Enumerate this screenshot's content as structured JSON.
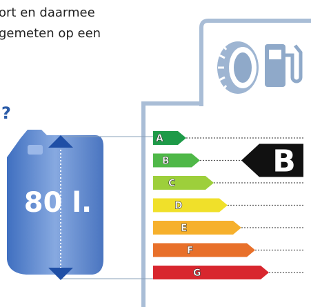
{
  "text_lines": [
    "ort en daarmee",
    "gemeten op een"
  ],
  "question": "?",
  "volume": "80 l.",
  "grades": [
    {
      "label": "A",
      "color": "#1e9a48"
    },
    {
      "label": "B",
      "color": "#4fb848"
    },
    {
      "label": "C",
      "color": "#9dcf3b"
    },
    {
      "label": "D",
      "color": "#f0e02a"
    },
    {
      "label": "E",
      "color": "#f6b02c"
    },
    {
      "label": "F",
      "color": "#e8702a"
    },
    {
      "label": "G",
      "color": "#d8262e"
    }
  ],
  "rating": "B"
}
